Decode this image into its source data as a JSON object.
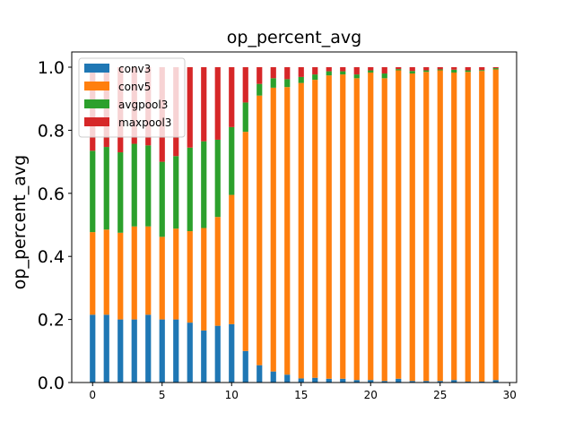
{
  "chart_data": {
    "type": "bar",
    "stacked": true,
    "title": "op_percent_avg",
    "xlabel": "",
    "ylabel": "op_percent_avg",
    "xlim": [
      -1.5,
      30.5
    ],
    "ylim": [
      0,
      1.0
    ],
    "x": [
      0,
      1,
      2,
      3,
      4,
      5,
      6,
      7,
      8,
      9,
      10,
      11,
      12,
      13,
      14,
      15,
      16,
      17,
      18,
      19,
      20,
      21,
      22,
      23,
      24,
      25,
      26,
      27,
      28,
      29
    ],
    "xticks": [
      "0",
      "5",
      "10",
      "15",
      "20",
      "25",
      "30"
    ],
    "xtick_values": [
      0,
      5,
      10,
      15,
      20,
      25,
      30
    ],
    "yticks": [
      "0.0",
      "0.2",
      "0.4",
      "0.6",
      "0.8",
      "1.0"
    ],
    "ytick_values": [
      0.0,
      0.2,
      0.4,
      0.6,
      0.8,
      1.0
    ],
    "legend_position": "upper-left",
    "series": [
      {
        "name": "conv3",
        "color": "#1f77b4",
        "values": [
          0.215,
          0.215,
          0.2,
          0.2,
          0.215,
          0.2,
          0.2,
          0.19,
          0.165,
          0.18,
          0.185,
          0.1,
          0.055,
          0.035,
          0.025,
          0.013,
          0.015,
          0.012,
          0.012,
          0.008,
          0.008,
          0.005,
          0.012,
          0.005,
          0.005,
          0.005,
          0.008,
          0.003,
          0.003,
          0.008
        ]
      },
      {
        "name": "conv5",
        "color": "#ff7f0e",
        "values": [
          0.262,
          0.27,
          0.275,
          0.295,
          0.28,
          0.262,
          0.288,
          0.29,
          0.325,
          0.345,
          0.41,
          0.695,
          0.855,
          0.9,
          0.912,
          0.937,
          0.945,
          0.962,
          0.965,
          0.957,
          0.975,
          0.96,
          0.978,
          0.975,
          0.98,
          0.985,
          0.975,
          0.982,
          0.985,
          0.985
        ]
      },
      {
        "name": "avgpool3",
        "color": "#2ca02c",
        "values": [
          0.258,
          0.262,
          0.255,
          0.262,
          0.257,
          0.238,
          0.23,
          0.265,
          0.275,
          0.245,
          0.215,
          0.093,
          0.037,
          0.03,
          0.025,
          0.019,
          0.017,
          0.013,
          0.01,
          0.012,
          0.007,
          0.015,
          0.004,
          0.008,
          0.005,
          0.003,
          0.009,
          0.005,
          0.003,
          0.004
        ]
      },
      {
        "name": "maxpool3",
        "color": "#d62728",
        "values": [
          0.265,
          0.253,
          0.27,
          0.243,
          0.248,
          0.3,
          0.282,
          0.255,
          0.235,
          0.23,
          0.19,
          0.112,
          0.053,
          0.035,
          0.038,
          0.031,
          0.023,
          0.013,
          0.013,
          0.023,
          0.01,
          0.02,
          0.006,
          0.012,
          0.01,
          0.007,
          0.008,
          0.01,
          0.009,
          0.003
        ]
      }
    ]
  }
}
